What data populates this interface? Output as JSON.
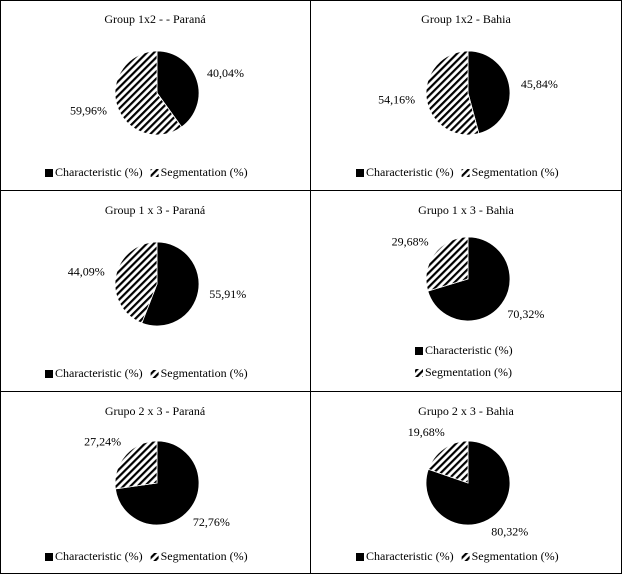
{
  "chart_data": [
    {
      "type": "pie",
      "title": "Group 1x2 - - Paraná",
      "categories": [
        "Characteristic (%)",
        "Segmentation (%)"
      ],
      "values": [
        40.04,
        59.96
      ],
      "value_labels": [
        "40,04%",
        "59,96%"
      ],
      "colors": [
        "#000000",
        "#000000"
      ],
      "hatch": [
        false,
        true
      ]
    },
    {
      "type": "pie",
      "title": "Group 1x2 - Bahia",
      "categories": [
        "Characteristic (%)",
        "Segmentation (%)"
      ],
      "values": [
        45.84,
        54.16
      ],
      "value_labels": [
        "45,84%",
        "54,16%"
      ],
      "colors": [
        "#000000",
        "#000000"
      ],
      "hatch": [
        false,
        true
      ]
    },
    {
      "type": "pie",
      "title": "Group 1 x 3 - Paraná",
      "categories": [
        "Characteristic (%)",
        "Segmentation (%)"
      ],
      "values": [
        55.91,
        44.09
      ],
      "value_labels": [
        "55,91%",
        "44,09%"
      ],
      "colors": [
        "#000000",
        "#000000"
      ],
      "hatch": [
        false,
        true
      ]
    },
    {
      "type": "pie",
      "title": "Grupo 1 x 3 - Bahia",
      "categories": [
        "Characteristic (%)",
        "Segmentation (%)"
      ],
      "values": [
        70.32,
        29.68
      ],
      "value_labels": [
        "70,32%",
        "29,68%"
      ],
      "colors": [
        "#000000",
        "#000000"
      ],
      "hatch": [
        false,
        true
      ],
      "legend_stacked": true
    },
    {
      "type": "pie",
      "title": "Grupo 2 x 3 - Paraná",
      "categories": [
        "Characteristic (%)",
        "Segmentation (%)"
      ],
      "values": [
        72.76,
        27.24
      ],
      "value_labels": [
        "72,76%",
        "27,24%"
      ],
      "colors": [
        "#000000",
        "#000000"
      ],
      "hatch": [
        false,
        true
      ]
    },
    {
      "type": "pie",
      "title": "Grupo 2 x 3 - Bahia",
      "categories": [
        "Characteristic (%)",
        "Segmentation (%)"
      ],
      "values": [
        80.32,
        19.68
      ],
      "value_labels": [
        "80,32%",
        "19,68%"
      ],
      "colors": [
        "#000000",
        "#000000"
      ],
      "hatch": [
        false,
        true
      ]
    }
  ]
}
